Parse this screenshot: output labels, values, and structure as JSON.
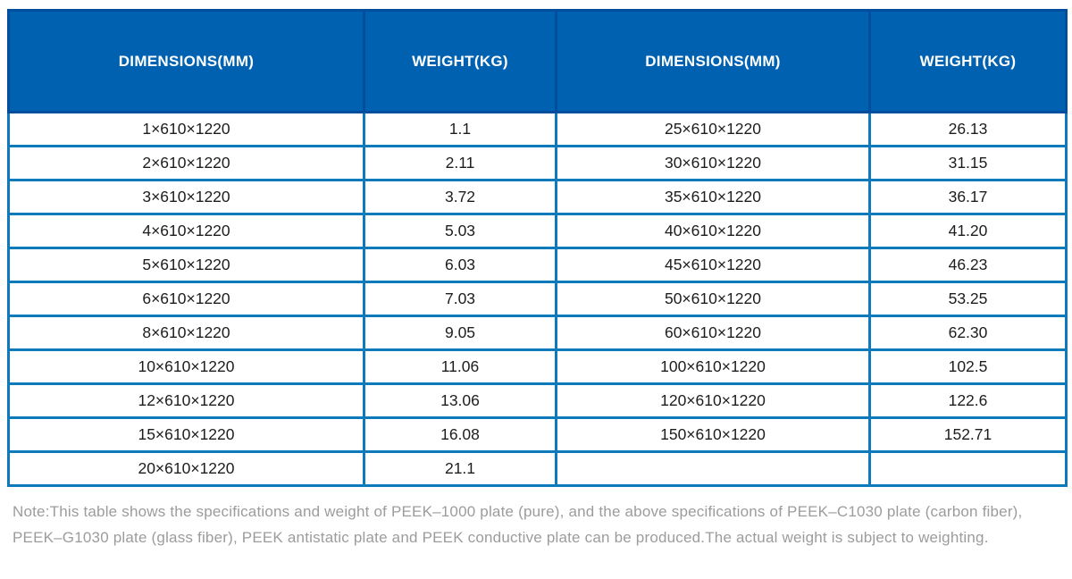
{
  "table": {
    "columns": [
      {
        "label": "DIMENSIONS(MM)"
      },
      {
        "label": "WEIGHT(KG)"
      },
      {
        "label": "DIMENSIONS(MM)"
      },
      {
        "label": "WEIGHT(KG)"
      }
    ],
    "rows": [
      [
        "1×610×1220",
        "1.1",
        "25×610×1220",
        "26.13"
      ],
      [
        "2×610×1220",
        "2.11",
        "30×610×1220",
        "31.15"
      ],
      [
        "3×610×1220",
        "3.72",
        "35×610×1220",
        "36.17"
      ],
      [
        "4×610×1220",
        "5.03",
        "40×610×1220",
        "41.20"
      ],
      [
        "5×610×1220",
        "6.03",
        "45×610×1220",
        "46.23"
      ],
      [
        "6×610×1220",
        "7.03",
        "50×610×1220",
        "53.25"
      ],
      [
        "8×610×1220",
        "9.05",
        "60×610×1220",
        "62.30"
      ],
      [
        "10×610×1220",
        "11.06",
        "100×610×1220",
        "102.5"
      ],
      [
        "12×610×1220",
        "13.06",
        "120×610×1220",
        "122.6"
      ],
      [
        "15×610×1220",
        "16.08",
        "150×610×1220",
        "152.71"
      ],
      [
        "20×610×1220",
        "21.1",
        "",
        ""
      ]
    ]
  },
  "note": {
    "lines": [
      "Note:This table shows the specifications and weight of PEEK–1000 plate (pure), and the above specifications of PEEK–C1030 plate (carbon fiber),",
      "PEEK–G1030 plate (glass fiber), PEEK antistatic plate and PEEK conductive plate can be produced.The actual weight is subject to weighting."
    ]
  },
  "colors": {
    "header_bg": "#0061b0",
    "header_border": "#024e9e",
    "body_border": "#0d7abc",
    "cell_text": "#1d1d1d",
    "note_text": "#9c9c9c",
    "header_text": "#ffffff",
    "page_bg": "#ffffff"
  }
}
